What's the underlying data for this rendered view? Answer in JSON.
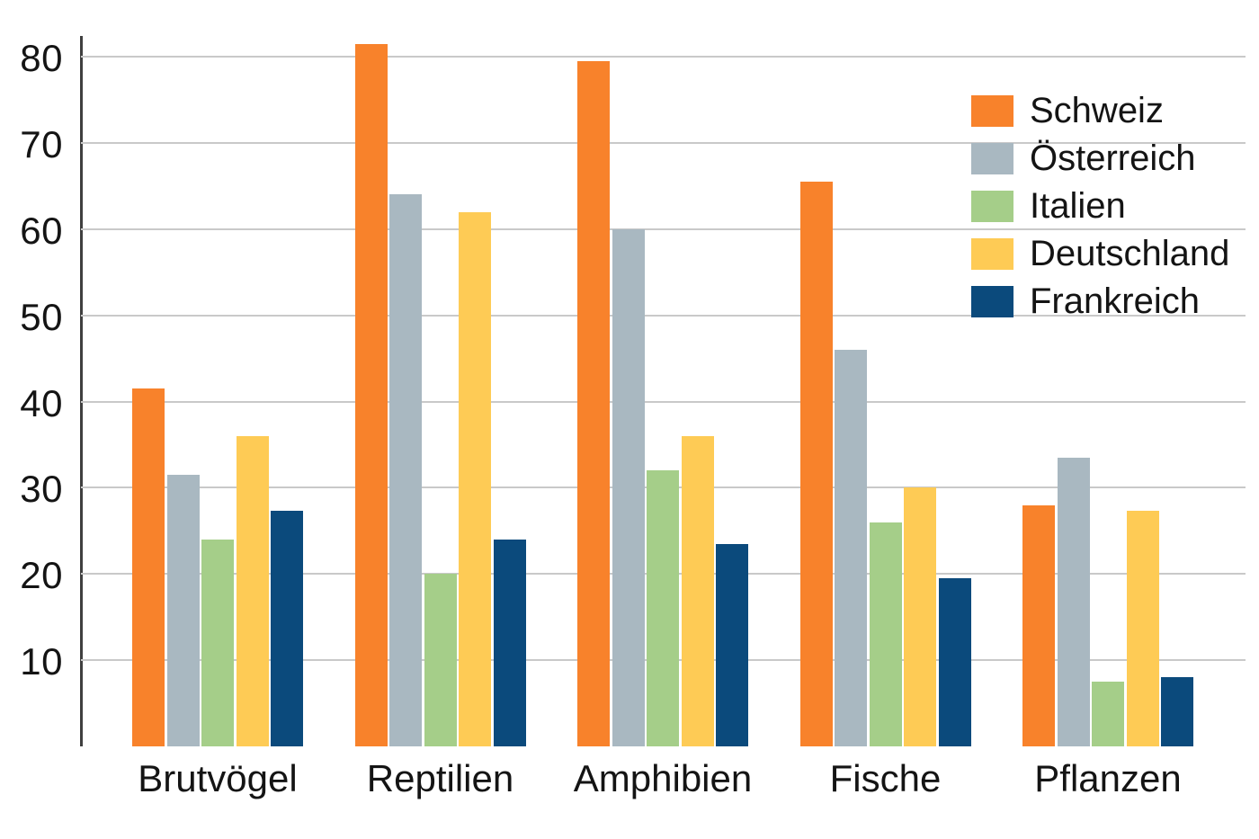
{
  "chart_data": {
    "type": "bar",
    "title": "",
    "xlabel": "",
    "ylabel": "",
    "categories": [
      "Brutvögel",
      "Reptilien",
      "Amphibien",
      "Fische",
      "Pflanzen"
    ],
    "series": [
      {
        "name": "Schweiz",
        "color": "#F8822B",
        "values": [
          41.5,
          81.5,
          79.5,
          65.5,
          28.0
        ]
      },
      {
        "name": "Österreich",
        "color": "#A9B8C1",
        "values": [
          31.5,
          64.0,
          60.0,
          46.0,
          33.5
        ]
      },
      {
        "name": "Italien",
        "color": "#A5CE89",
        "values": [
          24.0,
          20.0,
          32.0,
          26.0,
          7.5
        ]
      },
      {
        "name": "Deutschland",
        "color": "#FECB55",
        "values": [
          36.0,
          62.0,
          36.0,
          30.0,
          27.3
        ]
      },
      {
        "name": "Frankreich",
        "color": "#0B4A7C",
        "values": [
          27.3,
          24.0,
          23.5,
          19.5,
          8.0
        ]
      }
    ],
    "yticks": [
      10,
      20,
      30,
      40,
      50,
      60,
      70,
      80
    ],
    "ylim": [
      0,
      80
    ],
    "grid": true,
    "legend_position": "top-right",
    "colors": {
      "axis": "#3F3F3F",
      "grid": "#C9C9C9",
      "text": "#141414",
      "background": "#FFFFFF"
    }
  }
}
